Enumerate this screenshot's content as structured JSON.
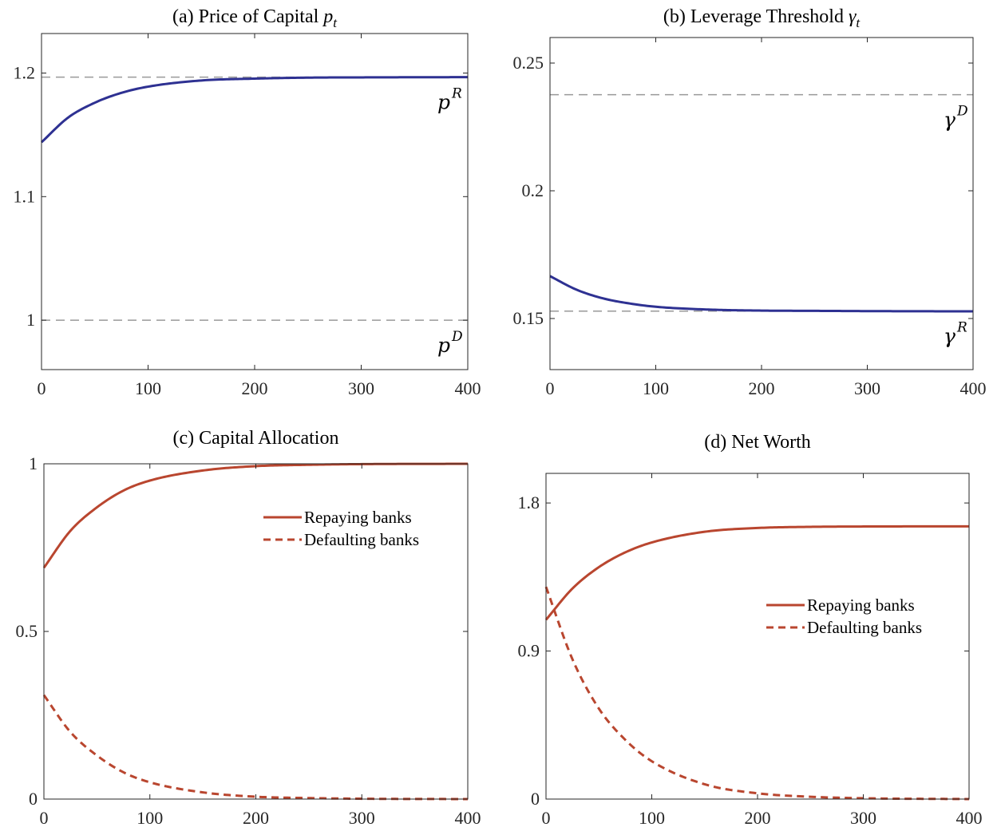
{
  "colors": {
    "blue": "#2e3192",
    "red": "#b9462f",
    "ref": "#999999",
    "axis": "#262626"
  },
  "chart_data": [
    {
      "type": "line",
      "title": "(a) Price of Capital ",
      "title_math": "p",
      "title_sub": "t",
      "xlim": [
        0,
        400
      ],
      "ylim": [
        0.96,
        1.232
      ],
      "xticks": [
        0,
        100,
        200,
        300,
        400
      ],
      "xtick_labels": [
        "0",
        "100",
        "200",
        "300",
        "400"
      ],
      "yticks": [
        1.0,
        1.1,
        1.2
      ],
      "ytick_labels": [
        "1",
        "1.1",
        "1.2"
      ],
      "series": [
        {
          "style": "solid",
          "color": "#2e3192",
          "x": [
            0,
            25,
            50,
            75,
            100,
            150,
            200,
            250,
            300,
            400
          ],
          "y": [
            1.144,
            1.164,
            1.176,
            1.184,
            1.189,
            1.194,
            1.1955,
            1.1963,
            1.1965,
            1.1967
          ]
        }
      ],
      "reference_lines": [
        {
          "y": 1.1967,
          "label": "p",
          "label_sup": "R",
          "label_pos": "below"
        },
        {
          "y": 1.0,
          "label": "p",
          "label_sup": "D",
          "label_pos": "below"
        }
      ]
    },
    {
      "type": "line",
      "title": "(b) Leverage Threshold ",
      "title_math": "γ",
      "title_sub": "t",
      "xlim": [
        0,
        400
      ],
      "ylim": [
        0.13,
        0.26
      ],
      "xticks": [
        0,
        100,
        200,
        300,
        400
      ],
      "xtick_labels": [
        "0",
        "100",
        "200",
        "300",
        "400"
      ],
      "yticks": [
        0.15,
        0.2,
        0.25
      ],
      "ytick_labels": [
        "0.15",
        "0.2",
        "0.25"
      ],
      "series": [
        {
          "style": "solid",
          "color": "#2e3192",
          "x": [
            0,
            25,
            50,
            75,
            100,
            150,
            200,
            250,
            300,
            400
          ],
          "y": [
            0.1666,
            0.1613,
            0.1579,
            0.1559,
            0.1546,
            0.1535,
            0.1531,
            0.153,
            0.1529,
            0.1528
          ]
        }
      ],
      "reference_lines": [
        {
          "y": 0.2376,
          "label": "γ",
          "label_sup": "D",
          "label_pos": "below"
        },
        {
          "y": 0.1529,
          "label": "γ",
          "label_sup": "R",
          "label_pos": "below"
        }
      ]
    },
    {
      "type": "line",
      "title": "(c) Capital Allocation",
      "xlim": [
        0,
        400
      ],
      "ylim": [
        0,
        1.0
      ],
      "xticks": [
        0,
        100,
        200,
        300,
        400
      ],
      "xtick_labels": [
        "0",
        "100",
        "200",
        "300",
        "400"
      ],
      "yticks": [
        0,
        0.5,
        1.0
      ],
      "ytick_labels": [
        "0",
        "0.5",
        "1"
      ],
      "legend": "upper-right",
      "series": [
        {
          "name": "Repaying banks",
          "style": "solid",
          "color": "#b9462f",
          "x": [
            0,
            25,
            50,
            75,
            100,
            150,
            200,
            250,
            300,
            400
          ],
          "y": [
            0.69,
            0.8,
            0.87,
            0.92,
            0.95,
            0.98,
            0.993,
            0.997,
            0.999,
            1.0
          ]
        },
        {
          "name": "Defaulting banks",
          "style": "dashed",
          "color": "#b9462f",
          "x": [
            0,
            25,
            50,
            75,
            100,
            150,
            200,
            250,
            300,
            400
          ],
          "y": [
            0.31,
            0.2,
            0.13,
            0.08,
            0.05,
            0.02,
            0.007,
            0.003,
            0.001,
            0.0
          ]
        }
      ]
    },
    {
      "type": "line",
      "title": "(d) Net Worth",
      "xlim": [
        0,
        400
      ],
      "ylim": [
        0,
        1.98
      ],
      "xticks": [
        0,
        100,
        200,
        300,
        400
      ],
      "xtick_labels": [
        "0",
        "100",
        "200",
        "300",
        "400"
      ],
      "yticks": [
        0,
        0.9,
        1.8
      ],
      "ytick_labels": [
        "0",
        "0.9",
        "1.8"
      ],
      "legend": "center-right",
      "series": [
        {
          "name": "Repaying banks",
          "style": "solid",
          "color": "#b9462f",
          "x": [
            0,
            25,
            50,
            75,
            100,
            150,
            200,
            250,
            300,
            400
          ],
          "y": [
            1.09,
            1.28,
            1.41,
            1.5,
            1.56,
            1.625,
            1.648,
            1.655,
            1.657,
            1.658
          ]
        },
        {
          "name": "Defaulting banks",
          "style": "dashed",
          "color": "#b9462f",
          "x": [
            0,
            25,
            50,
            75,
            100,
            150,
            200,
            250,
            300,
            400
          ],
          "y": [
            1.29,
            0.85,
            0.55,
            0.36,
            0.23,
            0.09,
            0.035,
            0.014,
            0.005,
            0.0
          ]
        }
      ]
    }
  ]
}
